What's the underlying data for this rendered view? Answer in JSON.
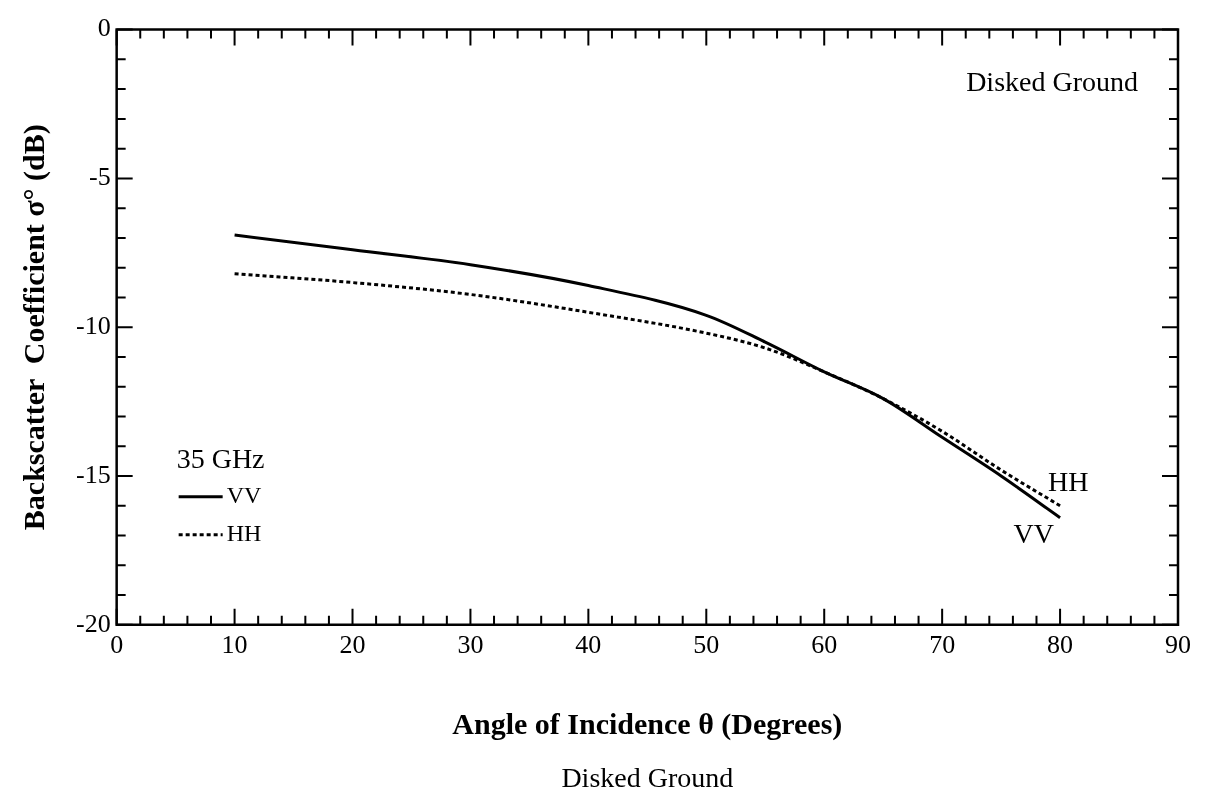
{
  "chart_data": {
    "type": "line",
    "title": "Disked Ground",
    "xlabel": "Angle of Incidence θ (Degrees)",
    "ylabel": "Backscatter  Coefficient σ° (dB)",
    "legend_title": "35 GHz",
    "legend": "bottom left",
    "marker": "none",
    "grid": false,
    "x": [
      10,
      20,
      30,
      40,
      50,
      55,
      60,
      65,
      70,
      75,
      80
    ],
    "series": [
      {
        "name": "VV",
        "color": "#000000",
        "line_style": "solid",
        "values": [
          -6.9,
          -7.4,
          -7.9,
          -8.6,
          -9.6,
          -10.5,
          -11.5,
          -12.4,
          -13.7,
          -15.0,
          -16.4
        ]
      },
      {
        "name": "HH",
        "color": "#000000",
        "line_style": "dotted",
        "values": [
          -8.2,
          -8.5,
          -8.9,
          -9.5,
          -10.2,
          -10.7,
          -11.5,
          -12.4,
          -13.5,
          -14.8,
          -16.0
        ]
      }
    ],
    "xlim": [
      0,
      90
    ],
    "ylim": [
      -20,
      0
    ],
    "xticks": [
      0,
      {
        "value": 2,
        "label": null
      },
      {
        "value": 4,
        "label": null
      },
      {
        "value": 6,
        "label": null
      },
      {
        "value": 8,
        "label": null
      },
      10,
      {
        "value": 12,
        "label": null
      },
      {
        "value": 14,
        "label": null
      },
      {
        "value": 16,
        "label": null
      },
      {
        "value": 18,
        "label": null
      },
      20,
      {
        "value": 22,
        "label": null
      },
      {
        "value": 24,
        "label": null
      },
      {
        "value": 26,
        "label": null
      },
      {
        "value": 28,
        "label": null
      },
      30,
      {
        "value": 32,
        "label": null
      },
      {
        "value": 34,
        "label": null
      },
      {
        "value": 36,
        "label": null
      },
      {
        "value": 38,
        "label": null
      },
      40,
      {
        "value": 42,
        "label": null
      },
      {
        "value": 44,
        "label": null
      },
      {
        "value": 46,
        "label": null
      },
      {
        "value": 48,
        "label": null
      },
      50,
      {
        "value": 52,
        "label": null
      },
      {
        "value": 54,
        "label": null
      },
      {
        "value": 56,
        "label": null
      },
      {
        "value": 58,
        "label": null
      },
      60,
      {
        "value": 62,
        "label": null
      },
      {
        "value": 64,
        "label": null
      },
      {
        "value": 66,
        "label": null
      },
      {
        "value": 68,
        "label": null
      },
      70,
      {
        "value": 72,
        "label": null
      },
      {
        "value": 74,
        "label": null
      },
      {
        "value": 76,
        "label": null
      },
      {
        "value": 78,
        "label": null
      },
      80,
      {
        "value": 82,
        "label": null
      },
      {
        "value": 84,
        "label": null
      },
      {
        "value": 86,
        "label": null
      },
      {
        "value": 88,
        "label": null
      },
      90
    ],
    "yticks": [
      -20,
      {
        "value": -19,
        "label": null
      },
      {
        "value": -18,
        "label": null
      },
      {
        "value": -17,
        "label": null
      },
      {
        "value": -16,
        "label": null
      },
      -15,
      {
        "value": -14,
        "label": null
      },
      {
        "value": -13,
        "label": null
      },
      {
        "value": -12,
        "label": null
      },
      {
        "value": -11,
        "label": null
      },
      -10,
      {
        "value": -9,
        "label": null
      },
      {
        "value": -8,
        "label": null
      },
      {
        "value": -7,
        "label": null
      },
      {
        "value": -6,
        "label": null
      },
      -5,
      {
        "value": -4,
        "label": null
      },
      {
        "value": -3,
        "label": null
      },
      {
        "value": -2,
        "label": null
      },
      {
        "value": -1,
        "label": null
      },
      0
    ],
    "annotations": [
      "Disked Ground"
    ]
  }
}
